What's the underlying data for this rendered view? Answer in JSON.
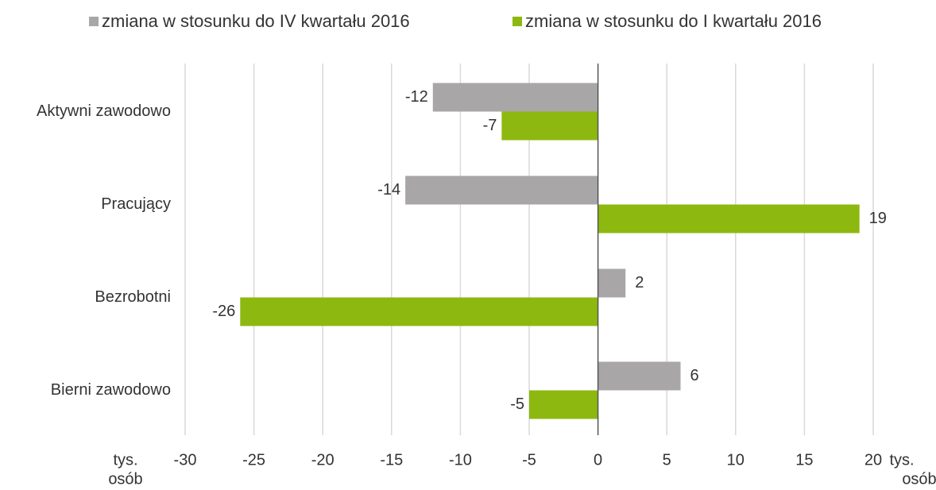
{
  "chart_data": {
    "type": "hbar",
    "categories": [
      "Aktywni zawodowo",
      "Pracujący",
      "Bezrobotni",
      "Bierni zawodowo"
    ],
    "series": [
      {
        "name": "zmiana w stosunku do IV kwartału 2016",
        "color": "#a8a6a7",
        "values": [
          -12,
          -14,
          2,
          6
        ]
      },
      {
        "name": "zmiana w stosunku do I kwartału 2016",
        "color": "#8db80f",
        "values": [
          -7,
          19,
          -26,
          -5
        ]
      }
    ],
    "xlim": [
      -30,
      20
    ],
    "xticks": [
      -30,
      -25,
      -20,
      -15,
      -10,
      -5,
      0,
      5,
      10,
      15,
      20
    ],
    "xlabel": [
      "tys.",
      "osób"
    ],
    "grid": true,
    "legend": "top"
  }
}
